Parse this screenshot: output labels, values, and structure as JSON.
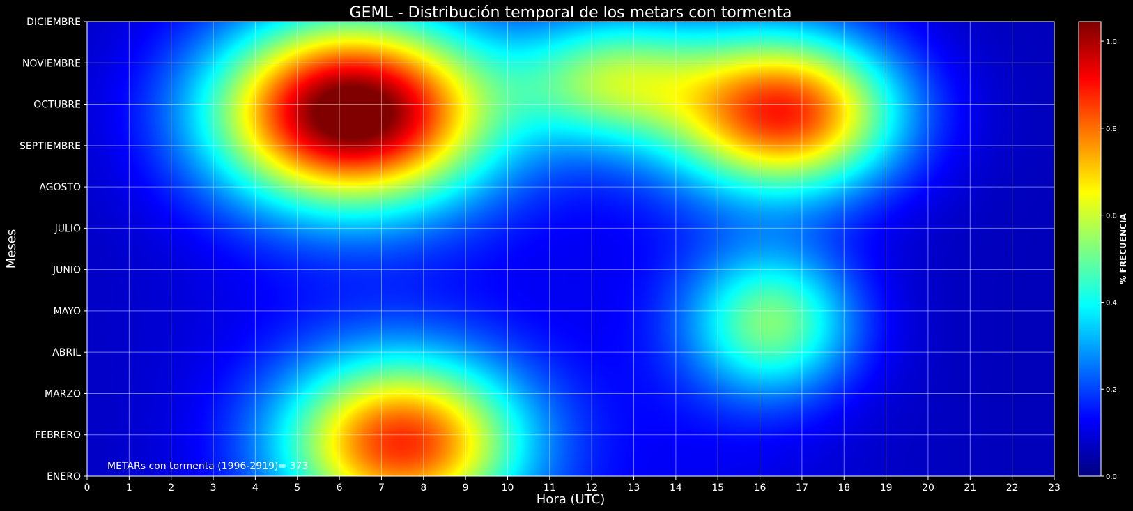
{
  "chart_data": {
    "type": "heatmap",
    "title": "GEML - Distribución temporal de los metars con tormenta",
    "xlabel": "Hora (UTC)",
    "ylabel": "Meses",
    "x_ticks": [
      "0",
      "1",
      "2",
      "3",
      "4",
      "5",
      "6",
      "7",
      "8",
      "9",
      "10",
      "11",
      "12",
      "13",
      "14",
      "15",
      "16",
      "17",
      "18",
      "19",
      "20",
      "21",
      "22",
      "23"
    ],
    "xlim": [
      0,
      23
    ],
    "y_ticks": [
      "ENERO",
      "FEBRERO",
      "MARZO",
      "ABRIL",
      "MAYO",
      "JUNIO",
      "JULIO",
      "AGOSTO",
      "SEPTIEMBRE",
      "OCTUBRE",
      "NOVIEMBRE",
      "DICIEMBRE"
    ],
    "ylim": [
      0,
      11
    ],
    "annotation": "METARs con tormenta (1996-2919)= 373",
    "grid": true,
    "colormap": "jet",
    "colorbar": {
      "label": "%  FRECUENCIA",
      "ticks": [
        "0.0",
        "0.2",
        "0.4",
        "0.6",
        "0.8",
        "1.0"
      ],
      "range": [
        0.0,
        1.045
      ]
    },
    "hotspots": [
      {
        "hour": 6.3,
        "month": 8.8,
        "peak": 1.0
      },
      {
        "hour": 16.6,
        "month": 8.8,
        "peak": 0.78
      },
      {
        "hour": 7.5,
        "month": 0.8,
        "peak": 0.75
      },
      {
        "hour": 16.3,
        "month": 3.7,
        "peak": 0.42
      },
      {
        "hour": 12.5,
        "month": 9.6,
        "peak": 0.4
      }
    ]
  }
}
